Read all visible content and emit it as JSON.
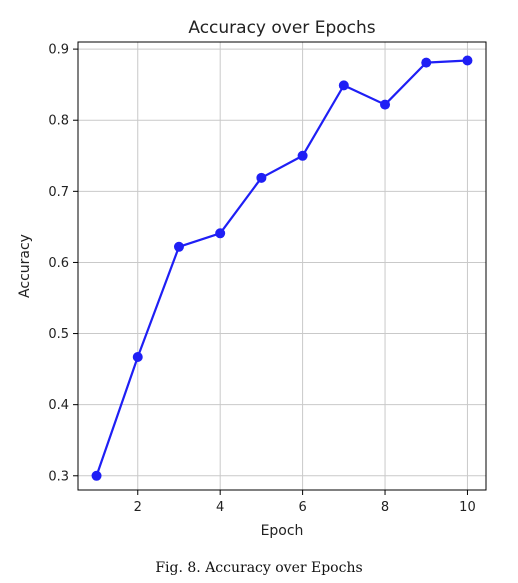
{
  "caption": "Fig. 8.  Accuracy over Epochs",
  "chart_data": {
    "type": "line",
    "title": "Accuracy over Epochs",
    "xlabel": "Epoch",
    "ylabel": "Accuracy",
    "x": [
      1,
      2,
      3,
      4,
      5,
      6,
      7,
      8,
      9,
      10
    ],
    "series": [
      {
        "values": [
          0.3,
          0.467,
          0.622,
          0.641,
          0.719,
          0.75,
          0.849,
          0.822,
          0.881,
          0.884
        ],
        "color": "#1f1ff5",
        "marker": "circle"
      }
    ],
    "xlim": [
      0.55,
      10.45
    ],
    "ylim": [
      0.28,
      0.91
    ],
    "xticks": [
      2,
      4,
      6,
      8,
      10
    ],
    "yticks": [
      0.3,
      0.4,
      0.5,
      0.6,
      0.7,
      0.8,
      0.9
    ],
    "grid": true,
    "legend": false
  }
}
